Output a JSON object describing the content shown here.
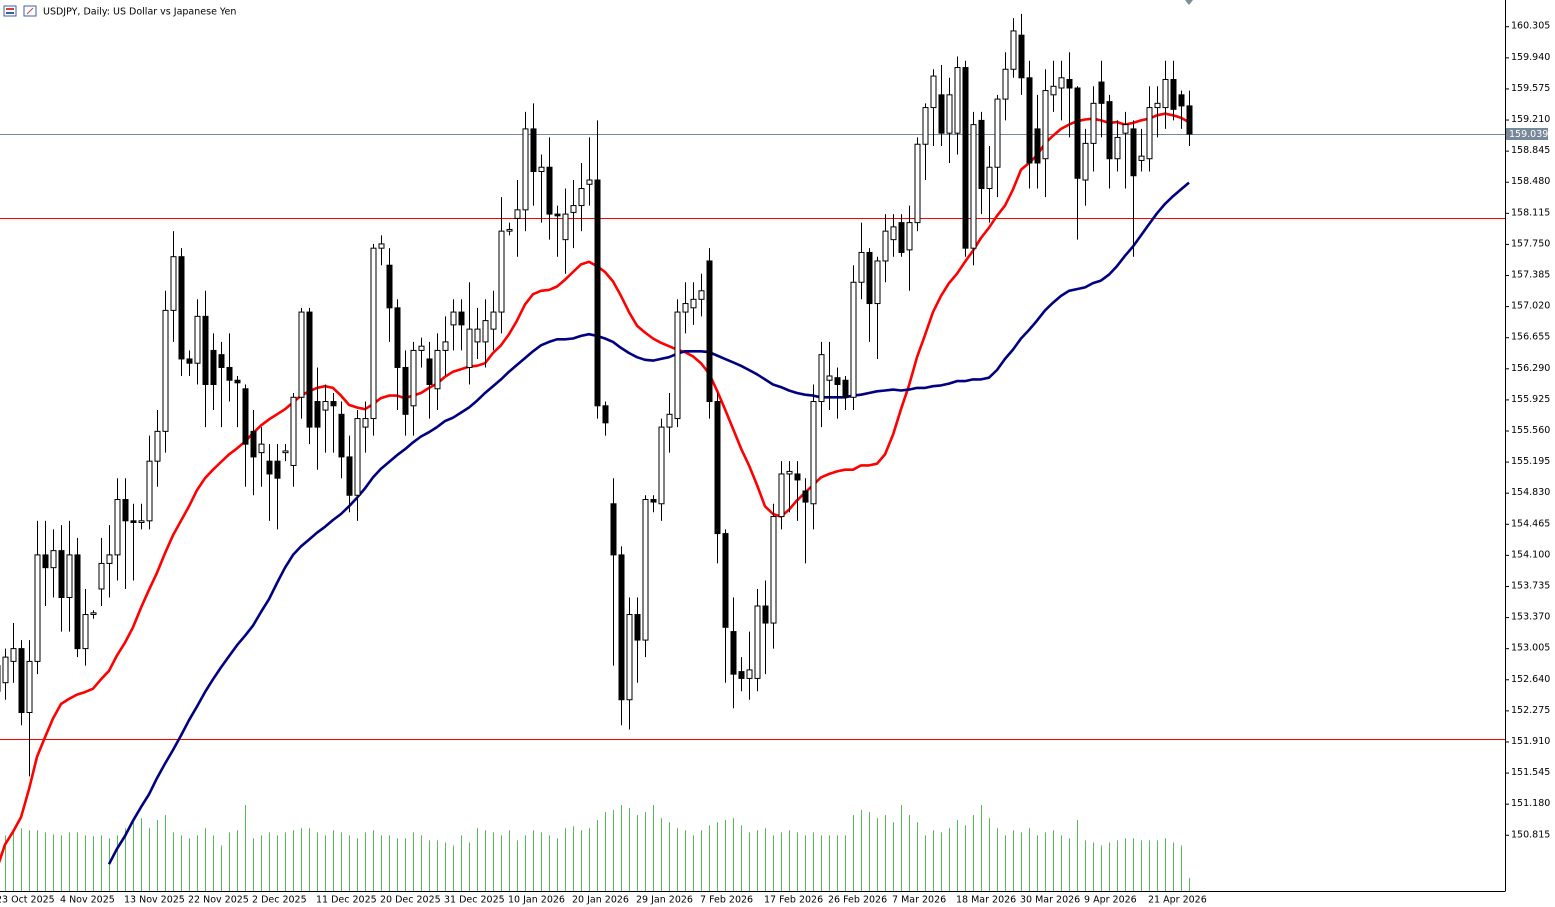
{
  "chart_data": {
    "type": "candlestick",
    "title": "USDJPY, Daily:  US Dollar vs Japanese Yen",
    "categories": [
      "23 Oct 2025",
      null,
      null,
      null,
      null,
      null,
      null,
      null,
      "4 Nov 2025",
      null,
      null,
      null,
      null,
      null,
      null,
      null,
      "13 Nov 2025",
      null,
      null,
      null,
      null,
      null,
      null,
      null,
      "22 Nov 2025",
      null,
      null,
      null,
      null,
      null,
      null,
      null,
      "2 Dec 2025",
      null,
      null,
      null,
      null,
      null,
      null,
      null,
      "11 Dec 2025",
      null,
      null,
      null,
      null,
      null,
      null,
      null,
      "20 Dec 2025",
      null,
      null,
      null,
      null,
      null,
      null,
      null,
      "31 Dec 2025",
      null,
      null,
      null,
      null,
      null,
      null,
      null,
      "10 Jan 2026",
      null,
      null,
      null,
      null,
      null,
      null,
      null,
      "20 Jan 2026",
      null,
      null,
      null,
      null,
      null,
      null,
      null,
      "29 Jan 2026",
      null,
      null,
      null,
      null,
      null,
      null,
      null,
      "7 Feb 2026",
      null,
      null,
      null,
      null,
      null,
      null,
      null,
      "17 Feb 2026",
      null,
      null,
      null,
      null,
      null,
      null,
      null,
      "26 Feb 2026",
      null,
      null,
      null,
      null,
      null,
      null,
      null,
      "7 Mar 2026",
      null,
      null,
      null,
      null,
      null,
      null,
      null,
      "18 Mar 2026",
      null,
      null,
      null,
      null,
      null,
      null,
      null,
      "30 Mar 2026",
      null,
      null,
      null,
      null,
      null,
      null,
      null,
      "9 Apr 2026",
      null,
      null,
      null,
      null,
      null,
      null,
      null,
      "21 Apr 2026",
      null,
      null,
      null,
      null,
      null
    ],
    "open": [
      152.5,
      152.6,
      152.85,
      153.0,
      152.25,
      152.85,
      154.1,
      153.95,
      154.15,
      153.6,
      154.1,
      153.0,
      153.4,
      153.7,
      154.0,
      154.1,
      154.75,
      154.5,
      154.48,
      154.5,
      155.2,
      155.55,
      156.97,
      157.6,
      156.4,
      156.35,
      156.9,
      156.5,
      156.45,
      156.3,
      156.15,
      156.05,
      155.55,
      155.3,
      155.2,
      155.2,
      155.3,
      155.15,
      155.95,
      156.95,
      155.9,
      155.8,
      155.9,
      155.75,
      155.25,
      154.8,
      155.6,
      155.7,
      157.7,
      157.5,
      157.0,
      156.3,
      155.85,
      156.5,
      156.4,
      156.05,
      156.5,
      156.8,
      156.95,
      156.3,
      156.6,
      156.6,
      156.75,
      156.95,
      157.9,
      158.05,
      158.15,
      159.1,
      158.6,
      158.65,
      158.1,
      157.8,
      158.12,
      158.2,
      158.45,
      158.5,
      155.85,
      154.7,
      154.1,
      152.4,
      153.4,
      153.1,
      154.75,
      154.7,
      155.6,
      155.7,
      156.95,
      157.0,
      157.1,
      157.55,
      155.9,
      154.35,
      153.2,
      152.73,
      152.65,
      152.65,
      153.5,
      153.3,
      154.55,
      155.05,
      155.05,
      154.85,
      154.7,
      155.9,
      156.15,
      156.18,
      156.15,
      155.95,
      157.3,
      157.65,
      157.05,
      157.55,
      157.8,
      158.0,
      157.68,
      158.0,
      158.92,
      159.35,
      159.5,
      159.05,
      159.05,
      159.82,
      157.7,
      159.2,
      158.4,
      158.65,
      159.45,
      159.8,
      160.2,
      159.7,
      159.1,
      158.75,
      159.5,
      159.58,
      159.68,
      159.58,
      158.5,
      158.93,
      159.65,
      159.42,
      158.75,
      159.05,
      159.1,
      158.73,
      158.75,
      159.35,
      159.35,
      159.68,
      159.5,
      159.37
    ],
    "high": [
      153.0,
      153.0,
      153.3,
      153.1,
      153.1,
      154.5,
      154.5,
      154.4,
      154.45,
      154.5,
      154.3,
      153.7,
      153.45,
      154.3,
      154.45,
      155.0,
      155.0,
      154.7,
      154.7,
      155.5,
      155.8,
      157.2,
      157.9,
      157.7,
      156.5,
      157.1,
      157.2,
      156.7,
      156.6,
      156.7,
      156.2,
      156.1,
      155.8,
      155.6,
      155.4,
      155.4,
      155.4,
      156.0,
      157.0,
      157.0,
      156.3,
      156.1,
      156.0,
      155.9,
      155.5,
      155.8,
      155.9,
      157.75,
      157.85,
      157.7,
      157.1,
      156.5,
      156.6,
      156.65,
      156.6,
      156.7,
      156.9,
      157.1,
      157.1,
      157.3,
      157.0,
      157.1,
      157.2,
      158.3,
      158.0,
      158.5,
      159.3,
      159.4,
      158.8,
      159.0,
      158.2,
      158.4,
      158.5,
      158.7,
      159.0,
      159.2,
      155.9,
      155.0,
      154.2,
      153.6,
      153.6,
      154.8,
      154.8,
      155.7,
      156.0,
      157.1,
      157.3,
      157.3,
      157.4,
      157.7,
      156.0,
      154.4,
      153.6,
      152.9,
      153.2,
      153.7,
      153.8,
      154.7,
      155.2,
      155.2,
      155.2,
      155.0,
      156.1,
      156.6,
      156.6,
      156.3,
      156.2,
      157.5,
      158.0,
      157.7,
      157.6,
      158.1,
      158.1,
      158.1,
      158.2,
      159.0,
      159.4,
      159.8,
      159.85,
      159.7,
      159.95,
      159.9,
      159.3,
      159.3,
      158.9,
      159.5,
      160.0,
      160.4,
      160.45,
      159.9,
      159.5,
      159.8,
      159.9,
      159.9,
      160.0,
      159.6,
      159.1,
      159.6,
      159.9,
      159.5,
      159.2,
      159.3,
      159.2,
      159.1,
      159.6,
      159.6,
      159.9,
      159.9,
      159.55,
      159.55
    ],
    "low": [
      152.3,
      152.4,
      152.6,
      152.1,
      151.5,
      152.7,
      153.5,
      153.6,
      153.2,
      153.2,
      152.9,
      152.8,
      153.35,
      153.5,
      153.6,
      153.8,
      153.7,
      153.8,
      154.4,
      154.4,
      154.9,
      155.3,
      156.6,
      156.2,
      156.2,
      156.1,
      155.6,
      155.8,
      155.6,
      155.9,
      155.6,
      154.9,
      154.8,
      154.9,
      154.5,
      154.4,
      155.2,
      154.9,
      155.7,
      155.4,
      155.1,
      155.3,
      155.3,
      155.0,
      154.6,
      154.5,
      155.3,
      155.5,
      157.5,
      156.6,
      155.8,
      155.5,
      155.5,
      156.3,
      155.7,
      155.8,
      156.2,
      156.5,
      156.5,
      156.1,
      156.4,
      156.3,
      156.5,
      156.7,
      157.85,
      157.6,
      157.9,
      158.2,
      158.0,
      157.8,
      157.6,
      157.4,
      157.7,
      157.9,
      158.2,
      155.7,
      155.5,
      152.8,
      152.1,
      152.05,
      152.6,
      152.9,
      154.6,
      154.5,
      155.3,
      155.6,
      156.7,
      156.8,
      156.9,
      155.7,
      154.0,
      152.6,
      152.3,
      152.5,
      152.4,
      152.5,
      152.7,
      153.0,
      154.4,
      154.6,
      154.5,
      154.0,
      154.4,
      155.6,
      155.8,
      155.7,
      155.8,
      155.8,
      157.1,
      156.6,
      156.4,
      157.3,
      157.6,
      157.6,
      157.2,
      157.9,
      158.5,
      158.9,
      158.9,
      158.7,
      158.8,
      157.6,
      157.5,
      158.1,
      158.0,
      158.3,
      159.2,
      159.7,
      159.5,
      158.4,
      158.4,
      158.3,
      159.3,
      159.2,
      159.0,
      157.8,
      158.2,
      158.6,
      159.0,
      158.4,
      158.6,
      158.4,
      157.6,
      158.6,
      158.6,
      159.0,
      159.1,
      159.2,
      159.1,
      158.9
    ],
    "close": [
      152.8,
      152.9,
      153.0,
      152.25,
      152.85,
      154.1,
      153.95,
      154.15,
      153.6,
      154.1,
      153.0,
      153.4,
      153.42,
      154.0,
      154.1,
      154.75,
      154.5,
      154.48,
      154.5,
      155.2,
      155.55,
      156.97,
      157.6,
      156.4,
      156.35,
      156.9,
      156.1,
      156.1,
      156.3,
      156.15,
      156.12,
      155.4,
      155.25,
      155.4,
      155.05,
      155.0,
      155.32,
      155.95,
      156.95,
      155.6,
      155.6,
      155.9,
      155.85,
      155.25,
      154.8,
      155.7,
      155.7,
      157.7,
      157.75,
      157.0,
      156.3,
      155.75,
      156.5,
      156.55,
      156.1,
      156.5,
      156.6,
      156.95,
      156.8,
      156.75,
      156.75,
      156.85,
      156.95,
      157.9,
      157.92,
      158.15,
      159.1,
      158.6,
      158.65,
      158.1,
      158.08,
      158.1,
      158.2,
      158.4,
      158.5,
      155.85,
      155.65,
      154.1,
      152.4,
      153.4,
      153.1,
      154.75,
      154.72,
      155.6,
      155.75,
      156.95,
      157.05,
      157.1,
      157.2,
      155.9,
      154.35,
      153.25,
      152.7,
      152.65,
      152.75,
      153.5,
      153.3,
      154.55,
      155.05,
      155.08,
      154.98,
      154.72,
      155.9,
      156.45,
      156.2,
      156.1,
      155.95,
      157.3,
      157.65,
      157.05,
      157.55,
      157.9,
      157.95,
      157.65,
      158.0,
      158.92,
      159.35,
      159.72,
      159.05,
      159.5,
      159.82,
      157.7,
      159.15,
      158.4,
      158.65,
      159.45,
      159.8,
      160.25,
      159.7,
      158.7,
      158.7,
      159.55,
      159.6,
      159.7,
      159.58,
      158.52,
      158.93,
      159.4,
      159.4,
      158.75,
      159.0,
      159.15,
      158.55,
      158.78,
      159.35,
      159.4,
      159.68,
      159.33,
      159.37,
      159.04
    ],
    "bull_color": "#ffffff",
    "bear_color": "#000000",
    "moving_averages": [
      {
        "color": "#ff0000",
        "values": [
          150.42,
          150.7,
          150.85,
          151.02,
          151.35,
          151.73,
          151.96,
          152.18,
          152.35,
          152.41,
          152.46,
          152.49,
          152.53,
          152.64,
          152.74,
          152.92,
          153.07,
          153.25,
          153.48,
          153.69,
          153.89,
          154.12,
          154.33,
          154.5,
          154.67,
          154.86,
          155.0,
          155.1,
          155.19,
          155.28,
          155.35,
          155.43,
          155.53,
          155.62,
          155.69,
          155.75,
          155.81,
          155.89,
          155.97,
          156.02,
          156.06,
          156.08,
          156.06,
          155.97,
          155.86,
          155.83,
          155.81,
          155.87,
          155.94,
          155.97,
          155.97,
          155.94,
          155.97,
          156.0,
          156.06,
          156.11,
          156.19,
          156.25,
          156.28,
          156.31,
          156.32,
          156.35,
          156.47,
          156.56,
          156.69,
          156.85,
          157.04,
          157.16,
          157.2,
          157.21,
          157.25,
          157.33,
          157.42,
          157.51,
          157.54,
          157.49,
          157.42,
          157.31,
          157.14,
          156.95,
          156.79,
          156.71,
          156.64,
          156.59,
          156.55,
          156.51,
          156.48,
          156.43,
          156.35,
          156.23,
          156.03,
          155.81,
          155.58,
          155.35,
          155.15,
          154.92,
          154.67,
          154.58,
          154.55,
          154.63,
          154.74,
          154.83,
          154.92,
          155.01,
          155.05,
          155.08,
          155.1,
          155.1,
          155.15,
          155.15,
          155.17,
          155.28,
          155.51,
          155.81,
          156.09,
          156.42,
          156.68,
          156.95,
          157.14,
          157.29,
          157.4,
          157.54,
          157.67,
          157.82,
          157.94,
          158.08,
          158.2,
          158.39,
          158.62,
          158.7,
          158.79,
          158.93,
          159.02,
          159.1,
          159.15,
          159.19,
          159.21,
          159.22,
          159.2,
          159.17,
          159.18,
          159.15,
          159.17,
          159.2,
          159.22,
          159.26,
          159.28,
          159.26,
          159.23,
          159.18
        ]
      },
      {
        "color": "#000080",
        "values": [
          null,
          null,
          null,
          null,
          null,
          null,
          null,
          null,
          null,
          null,
          null,
          null,
          null,
          null,
          150.47,
          150.65,
          150.8,
          150.98,
          151.14,
          151.29,
          151.48,
          151.65,
          151.81,
          151.98,
          152.16,
          152.32,
          152.49,
          152.64,
          152.78,
          152.91,
          153.04,
          153.15,
          153.27,
          153.43,
          153.58,
          153.77,
          153.95,
          154.1,
          154.2,
          154.28,
          154.36,
          154.43,
          154.51,
          154.58,
          154.67,
          154.77,
          154.88,
          155.01,
          155.11,
          155.19,
          155.27,
          155.34,
          155.42,
          155.49,
          155.54,
          155.6,
          155.67,
          155.71,
          155.77,
          155.83,
          155.91,
          156.0,
          156.08,
          156.16,
          156.25,
          156.33,
          156.41,
          156.49,
          156.56,
          156.6,
          156.63,
          156.63,
          156.64,
          156.67,
          156.69,
          156.67,
          156.64,
          156.6,
          156.53,
          156.47,
          156.42,
          156.39,
          156.38,
          156.4,
          156.42,
          156.46,
          156.49,
          156.49,
          156.49,
          156.48,
          156.44,
          156.4,
          156.36,
          156.32,
          156.27,
          156.22,
          156.16,
          156.1,
          156.07,
          156.03,
          156.0,
          155.98,
          155.97,
          155.95,
          155.95,
          155.95,
          155.95,
          155.97,
          155.98,
          156.0,
          156.02,
          156.03,
          156.04,
          156.03,
          156.04,
          156.06,
          156.06,
          156.08,
          156.09,
          156.11,
          156.14,
          156.14,
          156.16,
          156.16,
          156.18,
          156.27,
          156.4,
          156.51,
          156.64,
          156.74,
          156.85,
          156.97,
          157.06,
          157.14,
          157.2,
          157.22,
          157.24,
          157.29,
          157.32,
          157.39,
          157.49,
          157.61,
          157.72,
          157.85,
          157.98,
          158.11,
          158.22,
          158.31,
          158.39,
          158.47
        ]
      }
    ],
    "volume": {
      "color": "#5cb85c",
      "values": [
        50,
        55,
        58,
        62,
        60,
        60,
        58,
        56,
        55,
        58,
        58,
        55,
        54,
        55,
        52,
        55,
        62,
        68,
        72,
        62,
        70,
        75,
        58,
        55,
        52,
        55,
        62,
        55,
        45,
        58,
        60,
        85,
        52,
        55,
        58,
        55,
        58,
        60,
        62,
        62,
        58,
        55,
        60,
        58,
        55,
        52,
        58,
        60,
        55,
        55,
        52,
        52,
        58,
        55,
        50,
        50,
        48,
        45,
        55,
        48,
        62,
        60,
        58,
        55,
        60,
        50,
        55,
        60,
        58,
        55,
        52,
        62,
        64,
        60,
        62,
        70,
        78,
        80,
        85,
        82,
        75,
        78,
        85,
        72,
        68,
        62,
        60,
        55,
        60,
        65,
        68,
        70,
        72,
        65,
        58,
        60,
        62,
        55,
        58,
        60,
        58,
        55,
        58,
        55,
        55,
        55,
        55,
        75,
        80,
        78,
        72,
        75,
        68,
        85,
        75,
        68,
        55,
        60,
        58,
        62,
        70,
        65,
        75,
        85,
        72,
        62,
        55,
        60,
        58,
        62,
        55,
        58,
        60,
        55,
        52,
        70,
        50,
        48,
        45,
        48,
        50,
        52,
        52,
        50,
        50,
        50,
        52,
        48,
        45,
        13
      ]
    },
    "hlines": [
      {
        "value": 158.05,
        "color": "#ff0000"
      },
      {
        "value": 151.94,
        "color": "#ff0000"
      }
    ],
    "price_line": {
      "value": 159.039,
      "color": "#778899"
    },
    "ylim": [
      150.155,
      160.613
    ],
    "yticks": [
      160.305,
      {
        "value": 159.94,
        "label": "159.940"
      },
      159.575,
      {
        "value": 159.21,
        "label": "159.210"
      },
      158.845,
      {
        "value": 158.48,
        "label": "158.480"
      },
      158.115,
      {
        "value": 157.75,
        "label": "157.750"
      },
      157.385,
      {
        "value": 157.02,
        "label": "157.020"
      },
      156.655,
      {
        "value": 156.29,
        "label": "156.290"
      },
      155.925,
      {
        "value": 155.56,
        "label": "155.560"
      },
      155.195,
      {
        "value": 154.83,
        "label": "154.830"
      },
      154.465,
      {
        "value": 154.1,
        "label": "154.100"
      },
      153.735,
      {
        "value": 153.37,
        "label": "153.370"
      },
      153.005,
      {
        "value": 152.64,
        "label": "152.640"
      },
      152.275,
      {
        "value": 151.91,
        "label": "151.910"
      },
      151.545,
      {
        "value": 151.18,
        "label": "151.180"
      },
      150.815
    ],
    "grid": false
  }
}
